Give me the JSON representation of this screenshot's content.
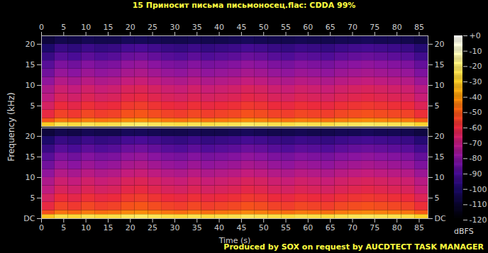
{
  "chart_data": {
    "type": "spectrogram",
    "title": "15 Приносит письма письмоносец.flac: CDDA 99%",
    "caption": "Produced by SOX on request by AUCDTECT TASK MANAGER",
    "x_label": "Time (s)",
    "y_label": "Frequency (kHz)",
    "xlim": [
      0,
      87
    ],
    "xticks": [
      0,
      5,
      10,
      15,
      20,
      25,
      30,
      35,
      40,
      45,
      50,
      55,
      60,
      65,
      70,
      75,
      80,
      85
    ],
    "ylim": [
      0,
      22.05
    ],
    "x_bins": [
      0,
      3,
      6,
      9,
      12,
      15,
      18,
      21,
      24,
      27,
      30,
      33,
      36,
      39,
      42,
      45,
      48,
      51,
      54,
      57,
      60,
      63,
      66,
      69,
      72,
      75,
      78,
      81,
      84,
      87
    ],
    "y_bins": [
      0,
      1,
      2,
      4,
      6,
      8,
      10,
      12,
      14,
      16,
      18,
      20,
      22.05
    ],
    "colorbar": {
      "label": "dBFS",
      "range": [
        -120,
        0
      ],
      "ticks": [
        -120,
        -110,
        -100,
        -90,
        -80,
        -70,
        -60,
        -50,
        -40,
        -30,
        -20,
        -10,
        {
          "value": 0,
          "label": "+0"
        }
      ]
    },
    "channels": [
      {
        "yticks": [
          5,
          10,
          15,
          20
        ],
        "cells": [
          [
            -31,
            -25,
            -27,
            -24,
            -26,
            -25,
            -22,
            -21,
            -23,
            -25,
            -26,
            -24,
            -26,
            -25,
            -24,
            -22,
            -23,
            -25,
            -26,
            -24,
            -25,
            -26,
            -24,
            -23,
            -22,
            -23,
            -24,
            -25,
            -29
          ],
          [
            -51,
            -45,
            -47,
            -44,
            -46,
            -45,
            -42,
            -41,
            -43,
            -45,
            -46,
            -44,
            -46,
            -45,
            -44,
            -42,
            -43,
            -45,
            -46,
            -44,
            -45,
            -46,
            -44,
            -43,
            -42,
            -43,
            -44,
            -45,
            -49
          ],
          [
            -61,
            -55,
            -57,
            -54,
            -56,
            -55,
            -52,
            -51,
            -53,
            -55,
            -56,
            -54,
            -56,
            -55,
            -54,
            -52,
            -53,
            -55,
            -56,
            -54,
            -55,
            -56,
            -54,
            -53,
            -52,
            -53,
            -54,
            -55,
            -59
          ],
          [
            -66,
            -60,
            -62,
            -59,
            -61,
            -60,
            -57,
            -56,
            -58,
            -60,
            -61,
            -59,
            -61,
            -60,
            -59,
            -57,
            -58,
            -60,
            -61,
            -59,
            -60,
            -61,
            -59,
            -58,
            -57,
            -58,
            -59,
            -60,
            -64
          ],
          [
            -71,
            -65,
            -67,
            -64,
            -66,
            -65,
            -62,
            -61,
            -63,
            -65,
            -66,
            -64,
            -66,
            -65,
            -64,
            -62,
            -63,
            -65,
            -66,
            -64,
            -65,
            -66,
            -64,
            -63,
            -62,
            -63,
            -64,
            -65,
            -69
          ],
          [
            -74,
            -68,
            -70,
            -67,
            -69,
            -68,
            -65,
            -64,
            -66,
            -68,
            -69,
            -67,
            -69,
            -68,
            -67,
            -65,
            -66,
            -68,
            -69,
            -67,
            -68,
            -69,
            -67,
            -66,
            -65,
            -66,
            -67,
            -68,
            -72
          ],
          [
            -79,
            -73,
            -75,
            -72,
            -74,
            -73,
            -70,
            -69,
            -71,
            -73,
            -74,
            -72,
            -74,
            -73,
            -72,
            -70,
            -71,
            -73,
            -74,
            -72,
            -73,
            -74,
            -72,
            -71,
            -70,
            -71,
            -72,
            -73,
            -77
          ],
          [
            -84,
            -78,
            -80,
            -77,
            -79,
            -78,
            -75,
            -74,
            -76,
            -78,
            -79,
            -77,
            -79,
            -78,
            -77,
            -75,
            -76,
            -78,
            -79,
            -77,
            -78,
            -79,
            -77,
            -76,
            -75,
            -76,
            -77,
            -78,
            -82
          ],
          [
            -88,
            -82,
            -84,
            -81,
            -83,
            -82,
            -79,
            -78,
            -80,
            -82,
            -83,
            -81,
            -83,
            -82,
            -81,
            -79,
            -80,
            -82,
            -83,
            -81,
            -82,
            -83,
            -81,
            -80,
            -79,
            -80,
            -81,
            -82,
            -86
          ],
          [
            -94,
            -88,
            -90,
            -87,
            -89,
            -88,
            -85,
            -84,
            -86,
            -88,
            -89,
            -87,
            -89,
            -88,
            -87,
            -85,
            -86,
            -88,
            -89,
            -87,
            -88,
            -89,
            -87,
            -86,
            -85,
            -86,
            -87,
            -88,
            -92
          ],
          [
            -100,
            -94,
            -96,
            -93,
            -95,
            -94,
            -91,
            -90,
            -92,
            -94,
            -95,
            -93,
            -95,
            -94,
            -93,
            -91,
            -92,
            -94,
            -95,
            -93,
            -94,
            -95,
            -93,
            -92,
            -91,
            -92,
            -93,
            -94,
            -98
          ],
          [
            -108,
            -105,
            -106,
            -104,
            -105,
            -105,
            -103,
            -103,
            -104,
            -105,
            -105,
            -104,
            -105,
            -105,
            -104,
            -103,
            -104,
            -105,
            -105,
            -104,
            -105,
            -105,
            -104,
            -104,
            -103,
            -104,
            -104,
            -105,
            -107
          ]
        ]
      },
      {
        "yticks": [
          {
            "value": 0,
            "label": "DC"
          },
          5,
          10,
          15,
          20
        ],
        "cells": [
          [
            -32,
            -26,
            -28,
            -25,
            -27,
            -26,
            -23,
            -22,
            -24,
            -26,
            -27,
            -25,
            -27,
            -26,
            -25,
            -23,
            -24,
            -26,
            -27,
            -25,
            -26,
            -27,
            -25,
            -24,
            -23,
            -24,
            -25,
            -26,
            -30
          ],
          [
            -52,
            -46,
            -48,
            -45,
            -47,
            -46,
            -43,
            -42,
            -44,
            -46,
            -47,
            -45,
            -47,
            -46,
            -45,
            -43,
            -44,
            -46,
            -47,
            -45,
            -46,
            -47,
            -45,
            -44,
            -43,
            -44,
            -45,
            -46,
            -50
          ],
          [
            -61,
            -55,
            -57,
            -54,
            -56,
            -55,
            -52,
            -51,
            -53,
            -55,
            -56,
            -54,
            -56,
            -55,
            -54,
            -52,
            -53,
            -55,
            -56,
            -54,
            -55,
            -56,
            -54,
            -53,
            -52,
            -53,
            -54,
            -55,
            -59
          ],
          [
            -66,
            -60,
            -62,
            -59,
            -61,
            -60,
            -57,
            -56,
            -58,
            -60,
            -61,
            -59,
            -61,
            -60,
            -59,
            -57,
            -58,
            -60,
            -61,
            -59,
            -60,
            -61,
            -59,
            -58,
            -57,
            -58,
            -59,
            -60,
            -64
          ],
          [
            -71,
            -65,
            -67,
            -64,
            -66,
            -65,
            -62,
            -61,
            -63,
            -65,
            -66,
            -64,
            -66,
            -65,
            -64,
            -62,
            -63,
            -65,
            -66,
            -64,
            -65,
            -66,
            -64,
            -63,
            -62,
            -63,
            -64,
            -65,
            -69
          ],
          [
            -74,
            -68,
            -70,
            -67,
            -69,
            -68,
            -65,
            -64,
            -66,
            -68,
            -69,
            -67,
            -69,
            -68,
            -67,
            -65,
            -66,
            -68,
            -69,
            -67,
            -68,
            -69,
            -67,
            -66,
            -65,
            -66,
            -67,
            -68,
            -72
          ],
          [
            -79,
            -73,
            -75,
            -72,
            -74,
            -73,
            -70,
            -69,
            -71,
            -73,
            -74,
            -72,
            -74,
            -73,
            -72,
            -70,
            -71,
            -73,
            -74,
            -72,
            -73,
            -74,
            -72,
            -71,
            -70,
            -71,
            -72,
            -73,
            -77
          ],
          [
            -84,
            -78,
            -80,
            -77,
            -79,
            -78,
            -75,
            -74,
            -76,
            -78,
            -79,
            -77,
            -79,
            -78,
            -77,
            -75,
            -76,
            -78,
            -79,
            -77,
            -78,
            -79,
            -77,
            -76,
            -75,
            -76,
            -77,
            -78,
            -82
          ],
          [
            -88,
            -82,
            -84,
            -81,
            -83,
            -82,
            -79,
            -78,
            -80,
            -82,
            -83,
            -81,
            -83,
            -82,
            -81,
            -79,
            -80,
            -82,
            -83,
            -81,
            -82,
            -83,
            -81,
            -80,
            -79,
            -80,
            -81,
            -82,
            -86
          ],
          [
            -94,
            -88,
            -90,
            -87,
            -89,
            -88,
            -85,
            -84,
            -86,
            -88,
            -89,
            -87,
            -89,
            -88,
            -87,
            -85,
            -86,
            -88,
            -89,
            -87,
            -88,
            -89,
            -87,
            -86,
            -85,
            -86,
            -87,
            -88,
            -92
          ],
          [
            -100,
            -94,
            -96,
            -93,
            -95,
            -94,
            -91,
            -90,
            -92,
            -94,
            -95,
            -93,
            -95,
            -94,
            -93,
            -91,
            -92,
            -94,
            -95,
            -93,
            -94,
            -95,
            -93,
            -92,
            -91,
            -92,
            -93,
            -94,
            -98
          ],
          [
            -108,
            -105,
            -106,
            -104,
            -105,
            -105,
            -103,
            -103,
            -104,
            -105,
            -105,
            -104,
            -105,
            -105,
            -104,
            -103,
            -104,
            -105,
            -105,
            -104,
            -105,
            -105,
            -104,
            -104,
            -103,
            -104,
            -104,
            -105,
            -107
          ]
        ]
      }
    ]
  }
}
